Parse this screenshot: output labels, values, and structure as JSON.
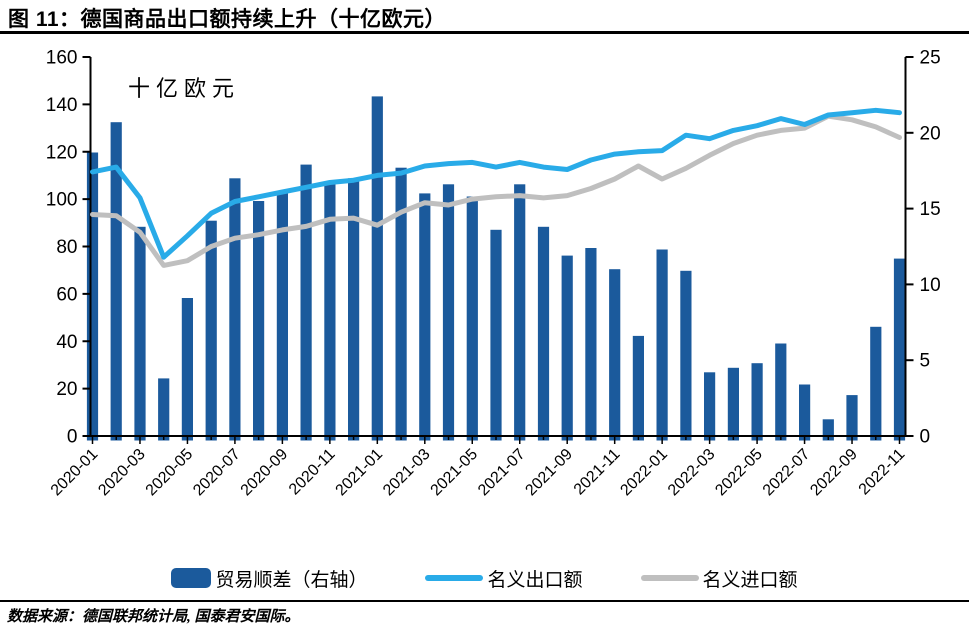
{
  "header": {
    "title": "图 11：德国商品出口额持续上升（十亿欧元）"
  },
  "chart_data": {
    "type": "combo-bar-line",
    "annotation": "十亿欧元",
    "categories": [
      "2020-01",
      "2020-02",
      "2020-03",
      "2020-04",
      "2020-05",
      "2020-06",
      "2020-07",
      "2020-08",
      "2020-09",
      "2020-10",
      "2020-11",
      "2020-12",
      "2021-01",
      "2021-02",
      "2021-03",
      "2021-04",
      "2021-05",
      "2021-06",
      "2021-07",
      "2021-08",
      "2021-09",
      "2021-10",
      "2021-11",
      "2021-12",
      "2022-01",
      "2022-02",
      "2022-03",
      "2022-04",
      "2022-05",
      "2022-06",
      "2022-07",
      "2022-08",
      "2022-09",
      "2022-10",
      "2022-11"
    ],
    "x_axis": {
      "tick_label_every": 2
    },
    "left_axis": {
      "min": 0,
      "max": 160,
      "step": 20,
      "ticks": [
        0,
        20,
        40,
        60,
        80,
        100,
        120,
        140,
        160
      ]
    },
    "right_axis": {
      "min": 0,
      "max": 25,
      "step": 5,
      "ticks": [
        0,
        5,
        10,
        15,
        20,
        25
      ]
    },
    "series": [
      {
        "name": "贸易顺差（右轴）",
        "type": "bar",
        "axis": "right",
        "color": "#1B5A9C",
        "values": [
          18.7,
          20.7,
          13.8,
          3.8,
          9.1,
          14.2,
          17.0,
          15.5,
          16.0,
          17.9,
          16.6,
          17.0,
          22.4,
          17.7,
          16.0,
          16.6,
          15.8,
          13.6,
          16.6,
          13.8,
          11.9,
          12.4,
          11.0,
          6.6,
          12.3,
          10.9,
          4.2,
          4.5,
          4.8,
          6.1,
          3.4,
          1.1,
          2.7,
          7.2,
          11.7
        ]
      },
      {
        "name": "名义出口额",
        "type": "line",
        "axis": "left",
        "color": "#29ABE8",
        "values": [
          111.5,
          113.5,
          100.5,
          75.5,
          84.5,
          94,
          99,
          101,
          103,
          105,
          107,
          108,
          110,
          111,
          114,
          115,
          115.5,
          113.5,
          115.5,
          113.5,
          112.5,
          116.5,
          119,
          120,
          120.5,
          127,
          125.5,
          129,
          131,
          134,
          131.5,
          135.5,
          136.5,
          137.5,
          136.5
        ]
      },
      {
        "name": "名义进口额",
        "type": "line",
        "axis": "left",
        "color": "#BFBFBF",
        "values": [
          93.5,
          93,
          86,
          72,
          74,
          80,
          83.5,
          85,
          87,
          88.5,
          91.5,
          92,
          89,
          94.5,
          98.5,
          97.5,
          100,
          101,
          101.5,
          100.5,
          101.5,
          104.5,
          108.5,
          114,
          108.5,
          113,
          118.5,
          123.5,
          127,
          129,
          130,
          135,
          133.5,
          130.5,
          126
        ]
      }
    ],
    "legend_position": "bottom",
    "grid": "off"
  },
  "footer": {
    "source": "数据来源：德国联邦统计局, 国泰君安国际。"
  }
}
